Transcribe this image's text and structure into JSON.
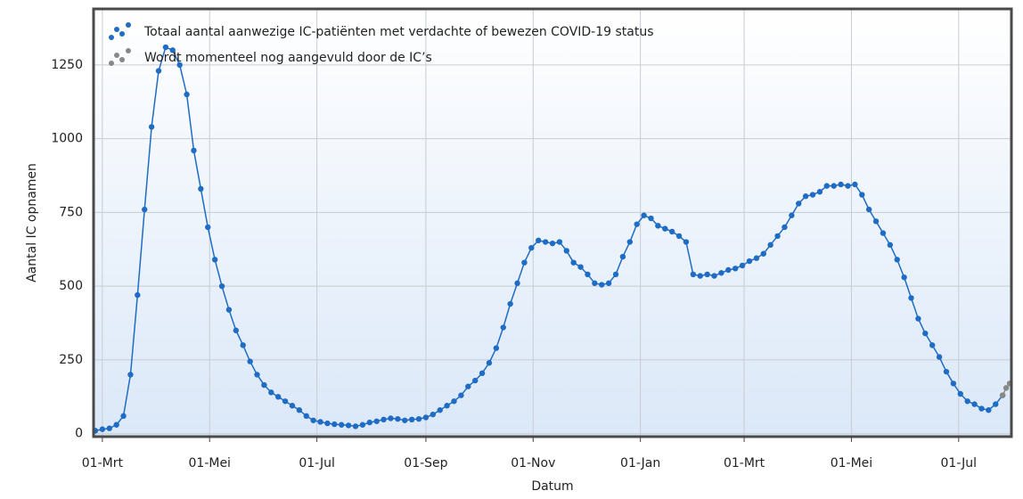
{
  "chart_data": {
    "type": "line",
    "y_label": "Aantal IC opnamen",
    "x_label": "Datum",
    "xlim": [
      -5,
      517
    ],
    "xticks": [
      {
        "value": 0,
        "label": "01-Mrt"
      },
      {
        "value": 61,
        "label": "01-Mei"
      },
      {
        "value": 122,
        "label": "01-Jul"
      },
      {
        "value": 184,
        "label": "01-Sep"
      },
      {
        "value": 245,
        "label": "01-Nov"
      },
      {
        "value": 306,
        "label": "01-Jan"
      },
      {
        "value": 365,
        "label": "01-Mrt"
      },
      {
        "value": 426,
        "label": "01-Mei"
      },
      {
        "value": 487,
        "label": "01-Jul"
      }
    ],
    "ylim": [
      -10,
      1440
    ],
    "yticks": [
      0,
      250,
      500,
      750,
      1000,
      1250
    ],
    "grid": true,
    "legend": "top-left",
    "series": [
      {
        "name": "Totaal aantal aanwezige IC-patiënten met verdachte of bewezen COVID-19 status",
        "color": "#1f6cc4",
        "x": [
          -4,
          0,
          4,
          8,
          12,
          16,
          20,
          24,
          28,
          32,
          36,
          40,
          44,
          48,
          52,
          56,
          60,
          64,
          68,
          72,
          76,
          80,
          84,
          88,
          92,
          96,
          100,
          104,
          108,
          112,
          116,
          120,
          124,
          128,
          132,
          136,
          140,
          144,
          148,
          152,
          156,
          160,
          164,
          168,
          172,
          176,
          180,
          184,
          188,
          192,
          196,
          200,
          204,
          208,
          212,
          216,
          220,
          224,
          228,
          232,
          236,
          240,
          244,
          248,
          252,
          256,
          260,
          264,
          268,
          272,
          276,
          280,
          284,
          288,
          292,
          296,
          300,
          304,
          308,
          312,
          316,
          320,
          324,
          328,
          332,
          336,
          340,
          344,
          348,
          352,
          356,
          360,
          364,
          368,
          372,
          376,
          380,
          384,
          388,
          392,
          396,
          400,
          404,
          408,
          412,
          416,
          420,
          424,
          428,
          432,
          436,
          440,
          444,
          448,
          452,
          456,
          460,
          464,
          468,
          472,
          476,
          480,
          484,
          488,
          492,
          496,
          500,
          504,
          508,
          512
        ],
        "values": [
          10,
          15,
          18,
          30,
          60,
          200,
          470,
          760,
          1040,
          1230,
          1310,
          1300,
          1250,
          1150,
          960,
          830,
          700,
          590,
          500,
          420,
          350,
          300,
          245,
          200,
          165,
          140,
          125,
          110,
          95,
          80,
          60,
          45,
          40,
          35,
          32,
          30,
          28,
          25,
          30,
          38,
          42,
          48,
          52,
          50,
          45,
          48,
          50,
          55,
          65,
          80,
          95,
          110,
          130,
          160,
          180,
          205,
          240,
          290,
          360,
          440,
          510,
          580,
          630,
          655,
          650,
          645,
          650,
          620,
          580,
          565,
          540,
          510,
          505,
          510,
          540,
          600,
          650,
          710,
          740,
          730,
          705,
          695,
          685,
          670,
          650,
          540,
          535,
          540,
          535,
          545,
          555,
          560,
          570,
          585,
          595,
          610,
          640,
          670,
          700,
          740,
          780,
          805,
          810,
          820,
          840,
          840,
          845,
          840,
          845,
          810,
          760,
          720,
          680,
          640,
          590,
          530,
          460,
          390,
          340,
          300,
          260,
          210,
          170,
          135,
          110,
          100,
          85,
          80,
          100,
          130
        ]
      },
      {
        "name": "Wordt momenteel nog aangevuld door de IC’s",
        "color": "#888888",
        "x": [
          512,
          514,
          516
        ],
        "values": [
          130,
          155,
          170
        ]
      }
    ]
  }
}
